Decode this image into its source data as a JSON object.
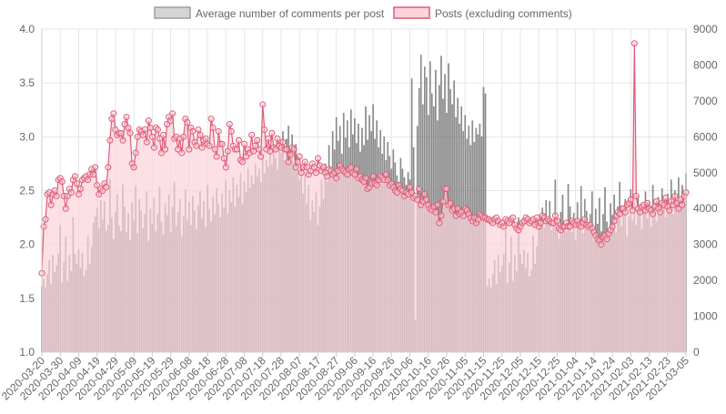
{
  "chart_data": {
    "type": "bar",
    "legend": {
      "placement": "top-center",
      "items": [
        {
          "label": "Average number of comments per post",
          "swatch_fill": "#d4d4d4",
          "swatch_stroke": "#9e9e9e",
          "interactable": true
        },
        {
          "label": "Posts (excluding comments)",
          "swatch_fill": "#fbd3da",
          "swatch_stroke": "#e05a78",
          "interactable": true
        }
      ]
    },
    "y_left": {
      "min": 1.0,
      "max": 4.0,
      "ticks": [
        "1.0",
        "1.5",
        "2.0",
        "2.5",
        "3.0",
        "3.5",
        "4.0"
      ]
    },
    "y_right": {
      "min": 0,
      "max": 9000,
      "ticks": [
        "0",
        "1000",
        "2000",
        "3000",
        "4000",
        "5000",
        "6000",
        "7000",
        "8000",
        "9000"
      ]
    },
    "x_ticks": [
      "2020-03-20",
      "2020-03-30",
      "2020-04-09",
      "2020-04-19",
      "2020-04-29",
      "2020-05-09",
      "2020-05-19",
      "2020-05-29",
      "2020-06-08",
      "2020-06-18",
      "2020-06-28",
      "2020-07-08",
      "2020-07-18",
      "2020-07-28",
      "2020-08-07",
      "2020-08-17",
      "2020-08-27",
      "2020-09-06",
      "2020-09-16",
      "2020-09-26",
      "2020-10-06",
      "2020-10-16",
      "2020-10-26",
      "2020-11-05",
      "2020-11-15",
      "2020-11-25",
      "2020-12-05",
      "2020-12-15",
      "2020-12-25",
      "2021-01-04",
      "2021-01-14",
      "2021-01-24",
      "2021-02-03",
      "2021-02-13",
      "2021-02-23",
      "2021-03-05"
    ],
    "grid": true,
    "colors": {
      "bar_fill": "#8c8c8c",
      "bar_stroke": "#5a5a5a",
      "line": "#e05a78",
      "area_fill": "#fbd3da",
      "grid": "#e6e6e6",
      "tick_text": "#666666"
    },
    "series": [
      {
        "name": "Average number of comments per post",
        "type": "bar",
        "axis": "left",
        "start_date": "2020-03-20",
        "values": [
          1.61,
          1.68,
          1.6,
          1.72,
          1.85,
          1.63,
          1.9,
          1.74,
          1.8,
          1.91,
          2.18,
          1.64,
          1.83,
          2.07,
          1.66,
          1.9,
          1.75,
          2.25,
          1.91,
          1.82,
          1.95,
          1.78,
          1.92,
          1.7,
          1.76,
          2.08,
          1.82,
          1.98,
          2.2,
          2.26,
          2.34,
          2.15,
          2.41,
          2.23,
          2.4,
          2.13,
          2.18,
          2.6,
          2.25,
          2.05,
          2.3,
          2.46,
          2.17,
          2.12,
          2.56,
          2.35,
          2.11,
          2.29,
          2.04,
          2.39,
          2.22,
          2.54,
          2.1,
          2.42,
          2.31,
          2.15,
          2.28,
          2.49,
          2.03,
          2.33,
          2.19,
          2.43,
          2.12,
          2.28,
          2.53,
          2.21,
          2.09,
          2.38,
          2.27,
          2.46,
          2.11,
          2.35,
          2.58,
          2.17,
          2.3,
          2.42,
          2.07,
          2.26,
          2.51,
          2.22,
          2.39,
          2.18,
          2.45,
          2.31,
          2.14,
          2.36,
          2.49,
          2.24,
          2.4,
          2.16,
          2.55,
          2.33,
          2.21,
          2.44,
          2.28,
          2.52,
          2.37,
          2.25,
          2.47,
          2.34,
          2.6,
          2.28,
          2.5,
          2.39,
          2.62,
          2.35,
          2.55,
          2.44,
          2.66,
          2.38,
          2.58,
          2.48,
          2.7,
          2.52,
          2.64,
          2.56,
          2.75,
          2.63,
          2.7,
          2.58,
          2.82,
          2.66,
          2.78,
          2.72,
          2.86,
          2.74,
          2.92,
          2.8,
          2.69,
          2.95,
          2.85,
          3.05,
          2.78,
          2.98,
          3.1,
          2.88,
          3.02,
          2.76,
          2.93,
          2.82,
          2.6,
          2.74,
          2.47,
          2.66,
          2.38,
          2.55,
          2.22,
          2.41,
          2.3,
          2.48,
          2.18,
          2.35,
          2.6,
          2.42,
          2.75,
          2.58,
          2.92,
          2.7,
          3.05,
          2.88,
          3.18,
          2.96,
          3.1,
          2.84,
          3.22,
          2.99,
          3.15,
          2.9,
          3.25,
          3.02,
          3.17,
          2.94,
          3.12,
          2.86,
          3.08,
          2.92,
          3.28,
          2.97,
          3.2,
          3.05,
          3.3,
          2.98,
          3.15,
          2.9,
          3.06,
          2.84,
          3.0,
          2.78,
          2.95,
          2.82,
          2.7,
          2.88,
          2.76,
          2.64,
          2.58,
          2.8,
          2.7,
          2.62,
          2.55,
          2.67,
          2.6,
          3.54,
          2.9,
          1.3,
          3.1,
          3.45,
          3.76,
          3.3,
          3.65,
          3.55,
          3.2,
          3.7,
          3.4,
          3.28,
          3.62,
          3.15,
          3.48,
          3.75,
          3.35,
          3.58,
          3.22,
          3.68,
          3.44,
          3.3,
          3.52,
          3.18,
          3.36,
          3.12,
          3.28,
          3.05,
          3.2,
          2.98,
          3.1,
          2.92,
          3.15,
          2.95,
          3.08,
          3.02,
          3.12,
          3.0,
          3.46,
          3.4
        ]
      },
      {
        "name": "Posts (excluding comments)",
        "type": "line",
        "axis": "right",
        "start_date": "2020-03-20",
        "values": [
          2200,
          3500,
          3700,
          4400,
          4450,
          4100,
          4400,
          4500,
          4350,
          4800,
          4850,
          4750,
          4350,
          4000,
          4350,
          4550,
          4450,
          4800,
          4900,
          4700,
          4400,
          4550,
          4800,
          4850,
          4900,
          4800,
          4950,
          5100,
          4950,
          5150,
          4650,
          4400,
          4550,
          4500,
          4700,
          4600,
          5150,
          5900,
          6500,
          6650,
          6200,
          6050,
          6100,
          6100,
          5900,
          6350,
          6550,
          6250,
          6100,
          5250,
          5150,
          5550,
          6000,
          6200,
          6150,
          6050,
          6200,
          5850,
          6450,
          6250,
          6000,
          5700,
          6250,
          6200,
          5950,
          5550,
          6050,
          5650,
          6350,
          6550,
          6450,
          6650,
          5950,
          6000,
          5650,
          5950,
          5550,
          6000,
          6500,
          6400,
          5650,
          6250,
          6150,
          5850,
          5750,
          6200,
          6050,
          5700,
          5900,
          5950,
          5800,
          5750,
          6500,
          6250,
          5650,
          5450,
          6150,
          5800,
          5800,
          5400,
          5150,
          5600,
          6350,
          6150,
          5750,
          5650,
          5650,
          5900,
          5350,
          5300,
          5800,
          5450,
          5650,
          5550,
          6050,
          5600,
          5750,
          5900,
          5650,
          5450,
          6900,
          6200,
          5650,
          5950,
          5600,
          6100,
          5700,
          5650,
          5950,
          5750,
          5700,
          5850,
          5650,
          5650,
          5300,
          5500,
          5700,
          5650,
          5150,
          5300,
          5450,
          5000,
          5150,
          5300,
          5150,
          4950,
          5050,
          5250,
          5150,
          5000,
          5400,
          5200,
          5050,
          5150,
          5000,
          4900,
          5100,
          5050,
          4950,
          5000,
          4850,
          5050,
          5200,
          5100,
          5050,
          5000,
          4950,
          5100,
          5150,
          5000,
          4950,
          5100,
          4850,
          4900,
          4800,
          4750,
          4850,
          4550,
          4600,
          4700,
          4900,
          4700,
          4650,
          4800,
          4900,
          4850,
          4800,
          4950,
          4800,
          4650,
          4700,
          4600,
          4500,
          4450,
          4650,
          4550,
          4500,
          4350,
          4450,
          4400,
          4600,
          4450,
          4300,
          4350,
          4250,
          4550,
          4100,
          4200,
          4400,
          4250,
          4100,
          4000,
          3950,
          4050,
          3900,
          4100,
          3600,
          3800,
          4200,
          4550,
          4550,
          4100,
          4150,
          3950,
          4000,
          3800,
          4000,
          3850,
          3900,
          3800,
          4000,
          3950,
          3850,
          3750,
          3650,
          3750,
          3600,
          3700,
          3850,
          3800,
          3750,
          3750,
          3700,
          3700,
          3650,
          3600,
          3700,
          3750,
          3650,
          3550,
          3600,
          3500,
          3700,
          3650,
          3600,
          3700,
          3750,
          3550,
          3450,
          3400,
          3500,
          3600,
          3650,
          3750,
          3700,
          3600,
          3650,
          3700,
          3550,
          3750,
          3500,
          3600,
          3800,
          3750,
          3650,
          3700,
          3650,
          3600,
          3600,
          3800,
          3650,
          3450,
          3400,
          3500,
          3500,
          3600,
          3500,
          3500,
          3650,
          3600,
          3550,
          3650,
          3550,
          3500,
          3600,
          3700,
          3550,
          3500,
          3550,
          3450,
          3350,
          3250,
          3150,
          3100,
          3000,
          3200,
          3250,
          3150,
          3300,
          3400,
          3500,
          3650,
          3800,
          3900,
          3850,
          4000,
          4000,
          3900,
          4100,
          4150,
          4250,
          3950,
          8600,
          4350,
          4000,
          3900,
          4050,
          4100,
          3950,
          4150,
          4000,
          3950,
          3850,
          4050,
          4200,
          4000,
          3900,
          4150,
          4100,
          4300,
          4050,
          3950,
          4200,
          4100,
          4350,
          4150,
          4000,
          4250,
          4100,
          4350,
          4450,
          4300,
          4200,
          4400,
          4300,
          4450,
          4250,
          4350,
          4500,
          4300,
          4400,
          4200,
          4350,
          4450,
          4250,
          4500,
          4300,
          4400,
          4550,
          4350,
          4200,
          4300,
          4150,
          4450,
          4350,
          4300,
          4450,
          4550,
          4600,
          4500
        ]
      }
    ]
  }
}
